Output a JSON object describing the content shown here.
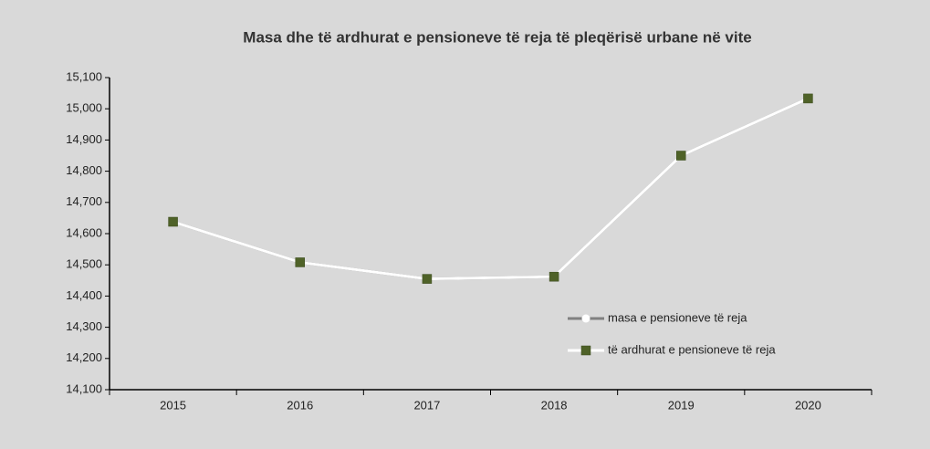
{
  "chart_data": {
    "type": "line",
    "title": "Masa  dhe të ardhurat e pensioneve të reja të pleqërisë urbane në vite",
    "categories": [
      "2015",
      "2016",
      "2017",
      "2018",
      "2019",
      "2020"
    ],
    "series": [
      {
        "name": "masa e pensioneve të reja",
        "color": "#808080",
        "marker": "circle",
        "marker_color": "#ffffff",
        "values": [
          14638,
          14508,
          14455,
          14462,
          14850,
          15033
        ]
      },
      {
        "name": "të ardhurat e pensioneve të reja",
        "color": "#ffffff",
        "marker": "square",
        "marker_color": "#4f6228",
        "values": [
          14638,
          14508,
          14455,
          14462,
          14850,
          15033
        ]
      }
    ],
    "ylim": [
      14100,
      15100
    ],
    "yticks": [
      {
        "value": 14100,
        "label": "14,100"
      },
      {
        "value": 14200,
        "label": "14,200"
      },
      {
        "value": 14300,
        "label": "14,300"
      },
      {
        "value": 14400,
        "label": "14,400"
      },
      {
        "value": 14500,
        "label": "14,500"
      },
      {
        "value": 14600,
        "label": "14,600"
      },
      {
        "value": 14700,
        "label": "14,700"
      },
      {
        "value": 14800,
        "label": "14,800"
      },
      {
        "value": 14900,
        "label": "14,900"
      },
      {
        "value": 15000,
        "label": "15,000"
      },
      {
        "value": 15100,
        "label": "15,100"
      }
    ],
    "grid": false,
    "legend": "lower right"
  }
}
